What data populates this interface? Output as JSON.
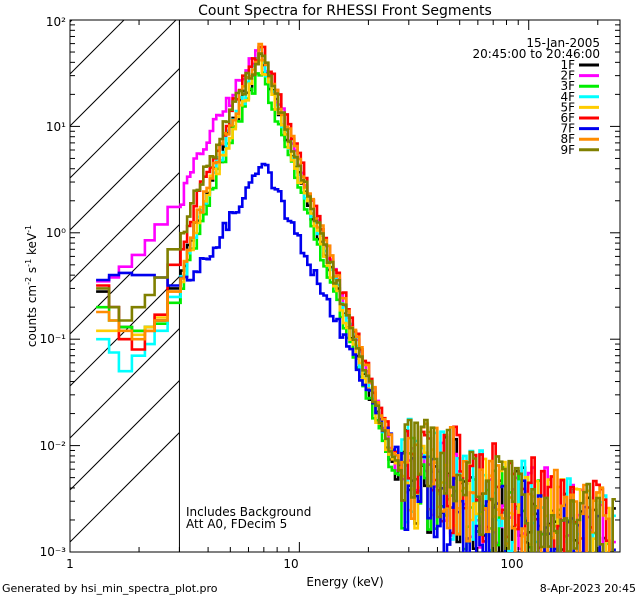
{
  "chart_data": {
    "type": "line",
    "title": "Count Spectra for RHESSI Front Segments",
    "xlabel": "Energy (keV)",
    "ylabel": "counts cm",
    "ylabel_sup1": "-2",
    "ylabel_mid": " s",
    "ylabel_sup2": "-1",
    "ylabel_end": " keV",
    "ylabel_sup3": "-1",
    "xscale": "log",
    "yscale": "log",
    "xlim": [
      1,
      250
    ],
    "ylim": [
      0.001,
      100
    ],
    "x_ticks": [
      "1",
      "10",
      "100"
    ],
    "y_ticks": [
      "10⁻³",
      "10⁻²",
      "10⁻¹",
      "10⁰",
      "10¹",
      "10²"
    ],
    "date": "15-Jan-2005",
    "time_range": "20:45:00 to 20:46:00",
    "annotation_1": "Includes Background",
    "annotation_2": "Att A0, FDecim 5",
    "excluded_region_max_kev": 3,
    "series": [
      {
        "name": "1F",
        "color": "#000000",
        "low": [
          0.28,
          0.2,
          0.13,
          0.12,
          0.13,
          0.15,
          0.3
        ],
        "peak": 45,
        "tail": 0.0022
      },
      {
        "name": "2F",
        "color": "#ff00ff",
        "low": [
          0.35,
          0.38,
          0.48,
          0.62,
          0.85,
          1.2,
          1.75
        ],
        "peak": 55,
        "tail": 0.0026
      },
      {
        "name": "3F",
        "color": "#00ee00",
        "low": [
          0.2,
          0.15,
          0.13,
          0.12,
          0.13,
          0.14,
          0.22
        ],
        "peak": 35,
        "tail": 0.0019
      },
      {
        "name": "4F",
        "color": "#00ffff",
        "low": [
          0.1,
          0.075,
          0.05,
          0.07,
          0.09,
          0.12,
          0.25
        ],
        "peak": 48,
        "tail": 0.0025
      },
      {
        "name": "5F",
        "color": "#ffcc00",
        "low": [
          0.12,
          0.12,
          0.1,
          0.11,
          0.13,
          0.16,
          0.28
        ],
        "peak": 42,
        "tail": 0.0024
      },
      {
        "name": "6F",
        "color": "#ff0000",
        "low": [
          0.32,
          0.2,
          0.1,
          0.08,
          0.12,
          0.17,
          0.5
        ],
        "peak": 62,
        "tail": 0.003
      },
      {
        "name": "7F",
        "color": "#0000ee",
        "low": [
          0.36,
          0.4,
          0.42,
          0.4,
          0.4,
          0.38,
          0.32
        ],
        "peak": 5.2,
        "tail": 0.0016
      },
      {
        "name": "8F",
        "color": "#ff8c00",
        "low": [
          0.18,
          0.15,
          0.12,
          0.1,
          0.12,
          0.15,
          0.28
        ],
        "peak": 58,
        "tail": 0.0028
      },
      {
        "name": "9F",
        "color": "#808000",
        "low": [
          0.3,
          0.2,
          0.15,
          0.2,
          0.26,
          0.38,
          0.7
        ],
        "peak": 52,
        "tail": 0.0026
      }
    ]
  },
  "footer": {
    "left": "Generated by hsi_min_spectra_plot.pro",
    "right": "8-Apr-2023 20:45"
  }
}
